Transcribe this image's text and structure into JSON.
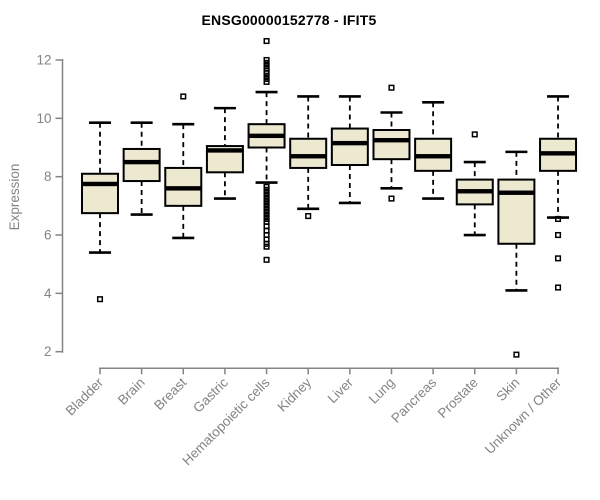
{
  "title": "ENSG00000152778 - IFIT5",
  "colors": {
    "box_fill": "#EDE8D0",
    "box_border": "#000000",
    "median": "#000000",
    "whisker": "#000000",
    "outlier": "#000000",
    "axis": "#848484",
    "tick_label": "#848484",
    "axis_title": "#848484",
    "title": "#000000",
    "background": "#ffffff"
  },
  "chart_data": {
    "type": "boxplot",
    "title": "ENSG00000152778 - IFIT5",
    "xlabel": "",
    "ylabel": "Expression",
    "ylim": [
      1.9,
      12.65
    ],
    "y_ticks": [
      2,
      4,
      6,
      8,
      10,
      12
    ],
    "grid": false,
    "legend": false,
    "categories": [
      "Bladder",
      "Brain",
      "Breast",
      "Gastric",
      "Hematopoietic cells",
      "Kidney",
      "Liver",
      "Lung",
      "Pancreas",
      "Prostate",
      "Skin",
      "Unknown / Other"
    ],
    "series": [
      {
        "name": "Bladder",
        "whisker_low": 5.4,
        "q1": 6.75,
        "median": 7.75,
        "q3": 8.1,
        "whisker_high": 9.85,
        "outliers": [
          3.8
        ]
      },
      {
        "name": "Brain",
        "whisker_low": 6.7,
        "q1": 7.85,
        "median": 8.5,
        "q3": 8.95,
        "whisker_high": 9.85,
        "outliers": []
      },
      {
        "name": "Breast",
        "whisker_low": 5.9,
        "q1": 7.0,
        "median": 7.6,
        "q3": 8.3,
        "whisker_high": 9.8,
        "outliers": [
          10.75
        ]
      },
      {
        "name": "Gastric",
        "whisker_low": 7.25,
        "q1": 8.15,
        "median": 8.9,
        "q3": 9.05,
        "whisker_high": 10.35,
        "outliers": []
      },
      {
        "name": "Hematopoietic cells",
        "whisker_low": 7.8,
        "q1": 9.0,
        "median": 9.4,
        "q3": 9.8,
        "whisker_high": 10.9,
        "outliers": [
          12.65,
          12.0,
          11.9,
          11.8,
          11.7,
          11.62,
          11.55,
          11.45,
          11.35,
          11.25,
          7.65,
          7.55,
          7.45,
          7.35,
          7.25,
          7.15,
          7.05,
          6.95,
          6.85,
          6.75,
          6.65,
          6.55,
          6.45,
          6.3,
          6.15,
          6.0,
          5.85,
          5.7,
          5.6,
          5.15
        ]
      },
      {
        "name": "Kidney",
        "whisker_low": 6.9,
        "q1": 8.3,
        "median": 8.7,
        "q3": 9.3,
        "whisker_high": 10.75,
        "outliers": [
          6.65
        ]
      },
      {
        "name": "Liver",
        "whisker_low": 7.1,
        "q1": 8.4,
        "median": 9.15,
        "q3": 9.65,
        "whisker_high": 10.75,
        "outliers": []
      },
      {
        "name": "Lung",
        "whisker_low": 7.6,
        "q1": 8.6,
        "median": 9.25,
        "q3": 9.6,
        "whisker_high": 10.2,
        "outliers": [
          11.05,
          7.25
        ]
      },
      {
        "name": "Pancreas",
        "whisker_low": 7.25,
        "q1": 8.2,
        "median": 8.7,
        "q3": 9.3,
        "whisker_high": 10.55,
        "outliers": []
      },
      {
        "name": "Prostate",
        "whisker_low": 6.0,
        "q1": 7.05,
        "median": 7.5,
        "q3": 7.9,
        "whisker_high": 8.5,
        "outliers": [
          9.45
        ]
      },
      {
        "name": "Skin",
        "whisker_low": 4.1,
        "q1": 5.7,
        "median": 7.45,
        "q3": 7.9,
        "whisker_high": 8.85,
        "outliers": [
          1.9
        ]
      },
      {
        "name": "Unknown / Other",
        "whisker_low": 6.6,
        "q1": 8.2,
        "median": 8.8,
        "q3": 9.3,
        "whisker_high": 10.75,
        "outliers": [
          6.55,
          6.0,
          5.2,
          4.2
        ]
      }
    ]
  }
}
